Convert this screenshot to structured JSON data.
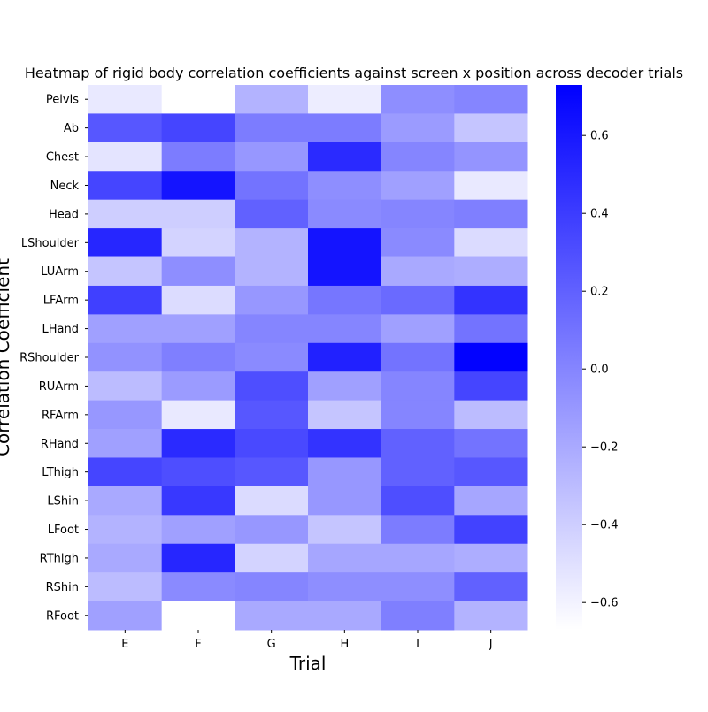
{
  "chart_data": {
    "type": "heatmap",
    "title": "Heatmap of rigid body correlation coefficients against screen x position across decoder trials",
    "xlabel": "Trial",
    "ylabel": "Correlation Coefficient",
    "x_categories": [
      "E",
      "F",
      "G",
      "H",
      "I",
      "J"
    ],
    "y_categories": [
      "Pelvis",
      "Ab",
      "Chest",
      "Neck",
      "Head",
      "LShoulder",
      "LUArm",
      "LFArm",
      "LHand",
      "RShoulder",
      "RUArm",
      "RFArm",
      "RHand",
      "LThigh",
      "LShin",
      "LFoot",
      "RThigh",
      "RShin",
      "RFoot"
    ],
    "values": [
      [
        -0.55,
        -0.67,
        -0.25,
        -0.57,
        -0.05,
        0.0
      ],
      [
        0.25,
        0.35,
        0.05,
        0.05,
        -0.12,
        -0.35
      ],
      [
        -0.52,
        0.05,
        -0.1,
        0.5,
        0.0,
        -0.08
      ],
      [
        0.35,
        0.62,
        0.1,
        -0.05,
        -0.15,
        -0.55
      ],
      [
        -0.4,
        -0.4,
        0.2,
        -0.03,
        0.0,
        0.03
      ],
      [
        0.52,
        -0.43,
        -0.25,
        0.62,
        -0.03,
        -0.47
      ],
      [
        -0.35,
        -0.05,
        -0.25,
        0.62,
        -0.2,
        -0.22
      ],
      [
        0.38,
        -0.48,
        -0.1,
        0.08,
        0.15,
        0.45
      ],
      [
        -0.15,
        -0.15,
        0.0,
        0.0,
        -0.15,
        0.1
      ],
      [
        -0.07,
        0.03,
        -0.03,
        0.55,
        0.1,
        0.72
      ],
      [
        -0.3,
        -0.12,
        0.3,
        -0.15,
        0.0,
        0.35
      ],
      [
        -0.1,
        -0.55,
        0.25,
        -0.35,
        0.0,
        -0.3
      ],
      [
        -0.15,
        0.5,
        0.33,
        0.45,
        0.2,
        0.1
      ],
      [
        0.35,
        0.3,
        0.25,
        -0.1,
        0.2,
        0.25
      ],
      [
        -0.2,
        0.42,
        -0.47,
        -0.1,
        0.3,
        -0.18
      ],
      [
        -0.25,
        -0.15,
        -0.1,
        -0.35,
        0.05,
        0.37
      ],
      [
        -0.2,
        0.52,
        -0.43,
        -0.18,
        -0.18,
        -0.22
      ],
      [
        -0.3,
        -0.03,
        0.0,
        -0.05,
        -0.05,
        0.2
      ],
      [
        -0.15,
        -0.67,
        -0.2,
        -0.2,
        0.03,
        -0.25
      ]
    ],
    "colorbar": {
      "min": -0.67,
      "max": 0.73,
      "ticks": [
        -0.6,
        -0.4,
        -0.2,
        0.0,
        0.2,
        0.4,
        0.6
      ],
      "tick_labels": [
        "−0.6",
        "−0.4",
        "−0.2",
        "0.0",
        "0.2",
        "0.4",
        "0.6"
      ],
      "color_low": "#ffffff",
      "color_high": "#0000ff"
    },
    "grid": false
  }
}
